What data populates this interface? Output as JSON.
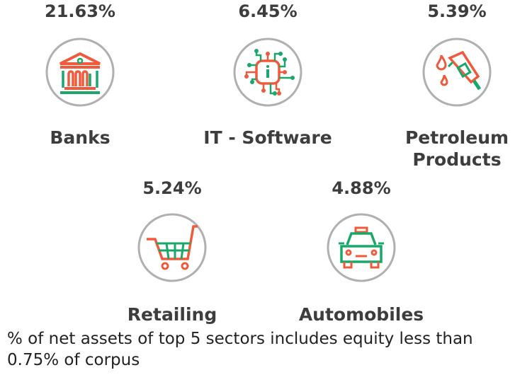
{
  "sectors": [
    {
      "name": "Banks",
      "percent": "21.63%",
      "icon": "bank-icon"
    },
    {
      "name": "IT - Software",
      "percent": "6.45%",
      "icon": "circuit-chip-icon"
    },
    {
      "name": "Petroleum Products",
      "percent": "5.39%",
      "icon": "fuel-nozzle-icon"
    },
    {
      "name": "Retailing",
      "percent": "5.24%",
      "icon": "shopping-cart-icon"
    },
    {
      "name": "Automobiles",
      "percent": "4.88%",
      "icon": "car-icon"
    }
  ],
  "footnote": "% of net assets of top 5 sectors includes equity less than 0.75% of corpus",
  "colors": {
    "orange": "#f05a3c",
    "green": "#1aa86a",
    "ring": "#b0b0b0",
    "text": "#3d3d3d"
  }
}
